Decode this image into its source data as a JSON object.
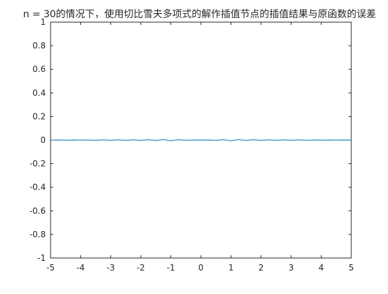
{
  "chart_data": {
    "type": "line",
    "title": "n = 30的情况下，使用切比雪夫多项式的解作插值节点的插值结果与原函数的误差",
    "xlabel": "",
    "ylabel": "",
    "xlim": [
      -5,
      5
    ],
    "ylim": [
      -1,
      1
    ],
    "xticks": [
      "-5",
      "-4",
      "-3",
      "-2",
      "-1",
      "0",
      "1",
      "2",
      "3",
      "4",
      "5"
    ],
    "yticks": [
      "1",
      "0.8",
      "0.6",
      "0.4",
      "0.2",
      "0",
      "-0.2",
      "-0.4",
      "-0.6",
      "-0.8",
      "-1"
    ],
    "grid": false,
    "box": true,
    "series": [
      {
        "color": "#0072BD",
        "x": [
          -5,
          -4.75,
          -4.5,
          -4.25,
          -4,
          -3.75,
          -3.5,
          -3.25,
          -3,
          -2.75,
          -2.5,
          -2.25,
          -2,
          -1.75,
          -1.5,
          -1.25,
          -1,
          -0.75,
          -0.5,
          -0.25,
          0,
          0.25,
          0.5,
          0.75,
          1,
          1.25,
          1.5,
          1.75,
          2,
          2.25,
          2.5,
          2.75,
          3,
          3.25,
          3.5,
          3.75,
          4,
          4.25,
          4.5,
          4.75,
          5
        ],
        "y": [
          0,
          0.001,
          -0.001,
          0.001,
          -0.001,
          0.001,
          -0.002,
          0.002,
          -0.002,
          0.002,
          -0.002,
          0.003,
          -0.003,
          0.004,
          -0.004,
          0.005,
          -0.006,
          0.004,
          -0.002,
          0.001,
          0,
          0.001,
          -0.002,
          0.004,
          -0.006,
          0.005,
          -0.004,
          0.004,
          -0.003,
          0.003,
          -0.002,
          0.002,
          -0.002,
          0.002,
          -0.002,
          0.001,
          -0.001,
          0.001,
          -0.001,
          0.001,
          0
        ]
      }
    ]
  }
}
